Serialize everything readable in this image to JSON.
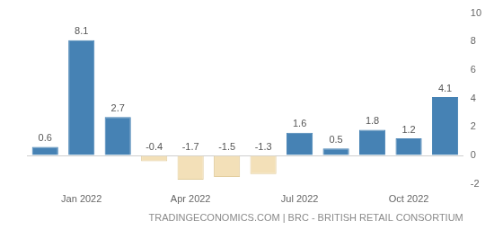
{
  "chart_data": {
    "type": "bar",
    "categories": [
      null,
      "Jan 2022",
      null,
      null,
      "Apr 2022",
      null,
      null,
      "Jul 2022",
      null,
      null,
      "Oct 2022",
      null
    ],
    "values": [
      0.6,
      8.1,
      2.7,
      -0.4,
      -1.7,
      -1.5,
      -1.3,
      1.6,
      0.5,
      1.8,
      1.2,
      4.1
    ],
    "colors": [
      "#4682b4",
      "#4682b4",
      "#4682b4",
      "#f3e0b8",
      "#f3e0b8",
      "#f3e0b8",
      "#f3e0b8",
      "#4682b4",
      "#4682b4",
      "#4682b4",
      "#4682b4",
      "#4682b4"
    ],
    "ylim": [
      -2,
      10
    ],
    "yticks": [
      -2,
      0,
      2,
      4,
      6,
      8,
      10
    ],
    "grid": false,
    "data_labels": true,
    "annotations": [
      "TRADINGECONOMICS.COM | BRC - BRITISH RETAIL CONSORTIUM"
    ]
  }
}
